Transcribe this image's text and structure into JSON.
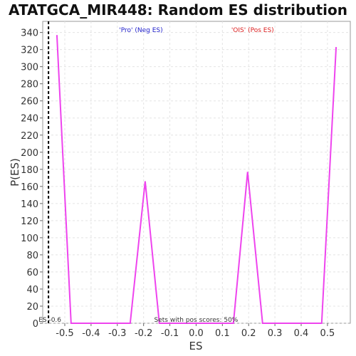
{
  "chart_data": {
    "type": "line",
    "title": "ATATGCA_MIR448: Random ES distribution",
    "x_label": "ES",
    "y_label": "P(ES)",
    "x": [
      -0.53,
      -0.476,
      -0.251,
      -0.194,
      -0.14,
      0.142,
      0.196,
      0.253,
      0.478,
      0.533
    ],
    "values": [
      337,
      0,
      0,
      166,
      0,
      0,
      177,
      0,
      0,
      323
    ],
    "color": "#ee44ee",
    "xlim": [
      -0.584,
      0.587
    ],
    "ylim": [
      0,
      353
    ],
    "xticks": [
      -0.5,
      -0.4,
      -0.3,
      -0.2,
      -0.1,
      {
        "value": 0,
        "label": "0.0"
      },
      0.1,
      0.2,
      0.3,
      0.4,
      0.5
    ],
    "yticks": [
      0,
      20,
      40,
      60,
      80,
      100,
      120,
      140,
      160,
      180,
      200,
      220,
      240,
      260,
      280,
      300,
      320,
      340
    ],
    "grid": true,
    "marker": {
      "x": -0.562,
      "label": "ES -0.6"
    },
    "annotations": [
      {
        "text": "'Pro' (Neg ES)",
        "x": -0.21,
        "color": "#2222cc"
      },
      {
        "text": "'OIS' (Pos ES)",
        "x": 0.215,
        "color": "#dd2222"
      },
      {
        "text": "Sets with pos scores: 50%",
        "x": 0.0,
        "color": "#333333"
      }
    ]
  }
}
